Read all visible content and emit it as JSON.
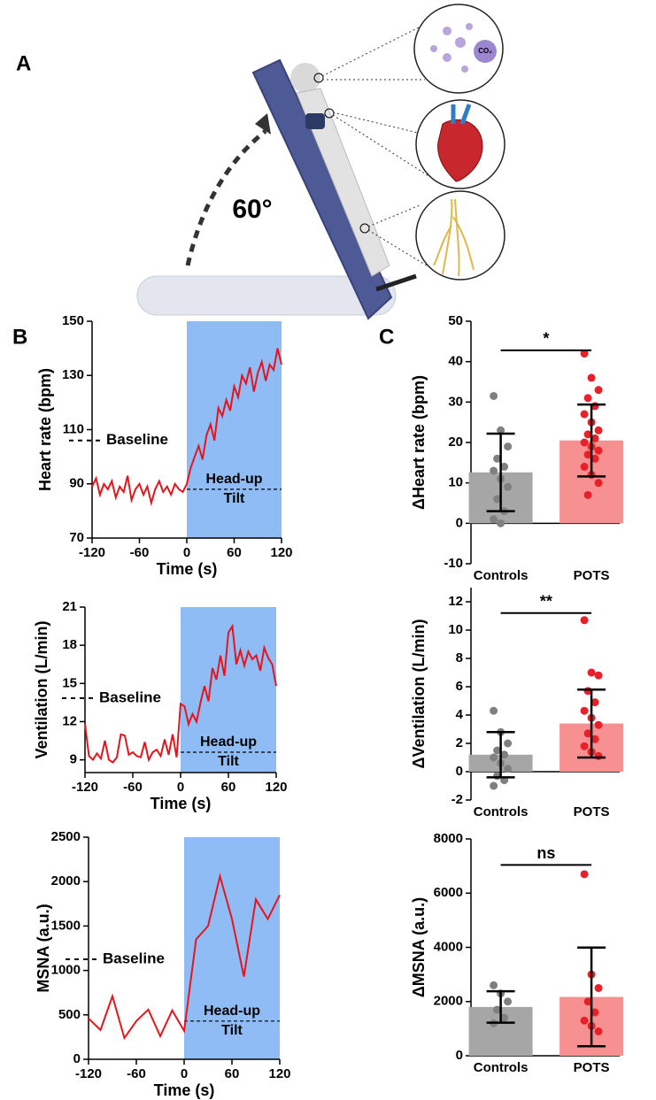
{
  "panel_labels": [
    "A",
    "B",
    "C"
  ],
  "illustration": {
    "angle_label": "60°",
    "gas_label": "CO₂"
  },
  "chart_data": [
    {
      "type": "line",
      "y_label": "Heart rate (bpm)",
      "x_label": "Time (s)",
      "color": "#e8141c",
      "x": [
        -120,
        -115,
        -110,
        -105,
        -100,
        -95,
        -90,
        -85,
        -80,
        -75,
        -70,
        -65,
        -60,
        -55,
        -50,
        -45,
        -40,
        -35,
        -30,
        -25,
        -20,
        -15,
        -10,
        -5,
        0,
        5,
        10,
        15,
        20,
        25,
        30,
        35,
        40,
        45,
        50,
        55,
        60,
        65,
        70,
        75,
        80,
        85,
        90,
        95,
        100,
        105,
        110,
        115,
        120
      ],
      "values": [
        89,
        92,
        86,
        90,
        88,
        91,
        85,
        89,
        87,
        93,
        84,
        88,
        90,
        86,
        89,
        83,
        88,
        91,
        87,
        89,
        86,
        90,
        88,
        87,
        90,
        96,
        100,
        104,
        99,
        108,
        112,
        106,
        118,
        115,
        121,
        117,
        126,
        122,
        130,
        127,
        133,
        124,
        131,
        135,
        128,
        134,
        132,
        140,
        134
      ],
      "xlim": [
        -120,
        120
      ],
      "xticks": [
        -120,
        -60,
        0,
        60,
        120
      ],
      "ylim": [
        70,
        150
      ],
      "yticks": [
        70,
        90,
        110,
        130,
        150
      ],
      "shaded_span": [
        0,
        120
      ],
      "shade_color": "#8fbcf5",
      "reference_line": 88,
      "baseline_label": "Baseline",
      "tilt_label": [
        "Head-up",
        "Tilt"
      ]
    },
    {
      "type": "line",
      "y_label": "Ventilation (L/min)",
      "x_label": "Time (s)",
      "color": "#e8141c",
      "x": [
        -120,
        -115,
        -110,
        -105,
        -100,
        -95,
        -90,
        -85,
        -80,
        -75,
        -70,
        -65,
        -60,
        -55,
        -50,
        -45,
        -40,
        -35,
        -30,
        -25,
        -20,
        -15,
        -10,
        -5,
        0,
        5,
        10,
        15,
        20,
        25,
        30,
        35,
        40,
        45,
        50,
        55,
        60,
        65,
        70,
        75,
        80,
        85,
        90,
        95,
        100,
        105,
        110,
        115,
        120
      ],
      "values": [
        11.8,
        9.3,
        9.0,
        9.5,
        9.1,
        10.5,
        9.0,
        8.8,
        9.2,
        11,
        10.9,
        9.4,
        9.6,
        9.3,
        9.2,
        10.4,
        9.0,
        9.6,
        9.8,
        9.3,
        10.6,
        9.4,
        11,
        9.2,
        13.4,
        13.2,
        11.8,
        12.6,
        12.0,
        13.5,
        14.8,
        13.6,
        16.2,
        15.3,
        17.2,
        15.6,
        19,
        19.5,
        16.5,
        17.6,
        16.4,
        17.5,
        16.9,
        17.2,
        16,
        17.8,
        17,
        16.5,
        14.8
      ],
      "xlim": [
        -120,
        120
      ],
      "xticks": [
        -120,
        -60,
        0,
        60,
        120
      ],
      "ylim": [
        8,
        21
      ],
      "yticks": [
        9,
        12,
        15,
        18,
        21
      ],
      "shaded_span": [
        0,
        120
      ],
      "shade_color": "#8fbcf5",
      "reference_line": 9.6,
      "baseline_label": "Baseline",
      "tilt_label": [
        "Head-up",
        "Tilt"
      ]
    },
    {
      "type": "line",
      "y_label": "MSNA (a.u.)",
      "x_label": "Time (s)",
      "color": "#e8141c",
      "x": [
        -120,
        -105,
        -90,
        -75,
        -60,
        -45,
        -30,
        -15,
        0,
        15,
        30,
        45,
        60,
        75,
        90,
        105,
        120
      ],
      "values": [
        460,
        330,
        710,
        240,
        430,
        560,
        260,
        550,
        320,
        1350,
        1500,
        2060,
        1580,
        930,
        1800,
        1580,
        1850
      ],
      "xlim": [
        -120,
        120
      ],
      "xticks": [
        -120,
        -60,
        0,
        60,
        120
      ],
      "ylim": [
        0,
        2500
      ],
      "yticks": [
        0,
        500,
        1000,
        1500,
        2000,
        2500
      ],
      "shaded_span": [
        0,
        120
      ],
      "shade_color": "#8fbcf5",
      "reference_line": 430,
      "baseline_label": "Baseline",
      "tilt_label": [
        "Head-up",
        "Tilt"
      ]
    },
    {
      "type": "bar",
      "y_label": "ΔHeart rate (bpm)",
      "categories": [
        "Controls",
        "POTS"
      ],
      "values": [
        12.6,
        20.5
      ],
      "errors": [
        9.6,
        8.9
      ],
      "points": [
        [
          31.5,
          23,
          19,
          16,
          14,
          13,
          11,
          9,
          6,
          3,
          1,
          0
        ],
        [
          42,
          36,
          33,
          31,
          29,
          27,
          25,
          23,
          22,
          21,
          20,
          19,
          18,
          17,
          16,
          14,
          12,
          10,
          7
        ]
      ],
      "bar_colors": [
        "#a6a6a6",
        "#f79191"
      ],
      "point_colors": [
        "#808080",
        "#e8202a"
      ],
      "ylim": [
        -10,
        50
      ],
      "yticks": [
        -10,
        0,
        10,
        20,
        30,
        40,
        50
      ],
      "significance": "*"
    },
    {
      "type": "bar",
      "y_label": "ΔVentilation (L/min)",
      "categories": [
        "Controls",
        "POTS"
      ],
      "values": [
        1.2,
        3.4
      ],
      "errors": [
        1.6,
        2.4
      ],
      "points": [
        [
          4.3,
          2.8,
          2.0,
          1.5,
          1.2,
          1.0,
          0.6,
          0.2,
          -0.3,
          -0.6,
          -1.0
        ],
        [
          10.7,
          7.0,
          6.8,
          5.7,
          4.9,
          4.3,
          3.8,
          3.3,
          2.7,
          2.3,
          1.8,
          1.4,
          1.1
        ]
      ],
      "bar_colors": [
        "#a6a6a6",
        "#f79191"
      ],
      "point_colors": [
        "#808080",
        "#e8202a"
      ],
      "ylim": [
        -2,
        13
      ],
      "yticks": [
        -2,
        0,
        2,
        4,
        6,
        8,
        10,
        12
      ],
      "significance": "**"
    },
    {
      "type": "bar",
      "y_label": "ΔMSNA (a.u.)",
      "categories": [
        "Controls",
        "POTS"
      ],
      "values": [
        1800,
        2170
      ],
      "errors": [
        580,
        1820
      ],
      "points": [
        [
          2600,
          2300,
          2000,
          1700,
          1400,
          1200
        ],
        [
          6700,
          3000,
          2500,
          2000,
          1600,
          1300,
          1100,
          900
        ]
      ],
      "bar_colors": [
        "#a6a6a6",
        "#f79191"
      ],
      "point_colors": [
        "#808080",
        "#e8202a"
      ],
      "ylim": [
        0,
        8000
      ],
      "yticks": [
        0,
        2000,
        4000,
        6000,
        8000
      ],
      "significance": "ns"
    }
  ]
}
